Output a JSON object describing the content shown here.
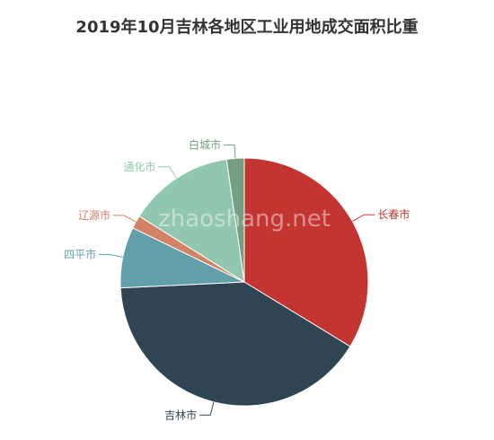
{
  "chart_data": {
    "type": "pie",
    "title": "2019年10月吉林各地区工业用地成交面积比重",
    "categories": [
      "长春市",
      "吉林市",
      "四平市",
      "辽源市",
      "通化市",
      "白城市"
    ],
    "values": [
      35.2,
      42.3,
      8.3,
      1.8,
      14.4,
      2.4
    ],
    "colors": [
      "#c23531",
      "#2f4554",
      "#61a0a8",
      "#d48265",
      "#91c7ae",
      "#749f83"
    ],
    "legend": "none",
    "start": "12 o'clock, clockwise"
  },
  "watermark": "zhaoshang.net"
}
